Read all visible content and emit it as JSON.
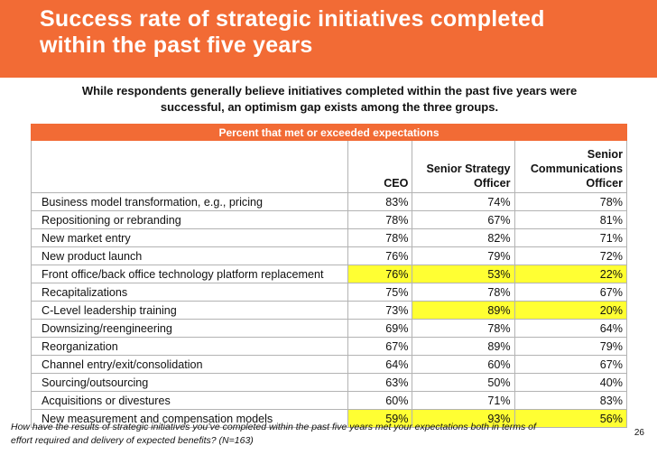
{
  "header": {
    "title_line1": "Success rate of strategic initiatives completed",
    "title_line2": "within the past five years"
  },
  "subtitle": {
    "line1": "While respondents generally believe initiatives completed within the past five years were",
    "line2": "successful, an optimism gap exists among the three groups."
  },
  "table": {
    "band_label": "Percent that met or exceeded expectations",
    "columns": [
      "",
      "CEO",
      "Senior Strategy Officer",
      "Senior Communications Officer"
    ],
    "column_lines": {
      "ceo": [
        "CEO"
      ],
      "sso": [
        "Senior Strategy",
        "Officer"
      ],
      "sco": [
        "Senior",
        "Communications",
        "Officer"
      ]
    },
    "highlight_color": "#ffff33",
    "rows": [
      {
        "label": "Business model transformation, e.g., pricing",
        "ceo": "83%",
        "sso": "74%",
        "sco": "78%",
        "highlight": []
      },
      {
        "label": "Repositioning or rebranding",
        "ceo": "78%",
        "sso": "67%",
        "sco": "81%",
        "highlight": []
      },
      {
        "label": "New market entry",
        "ceo": "78%",
        "sso": "82%",
        "sco": "71%",
        "highlight": []
      },
      {
        "label": "New product launch",
        "ceo": "76%",
        "sso": "79%",
        "sco": "72%",
        "highlight": []
      },
      {
        "label": "Front office/back office technology platform replacement",
        "ceo": "76%",
        "sso": "53%",
        "sco": "22%",
        "highlight": [
          "ceo",
          "sso",
          "sco"
        ]
      },
      {
        "label": "Recapitalizations",
        "ceo": "75%",
        "sso": "78%",
        "sco": "67%",
        "highlight": []
      },
      {
        "label": "C-Level leadership training",
        "ceo": "73%",
        "sso": "89%",
        "sco": "20%",
        "highlight": [
          "sso",
          "sco"
        ]
      },
      {
        "label": "Downsizing/reengineering",
        "ceo": "69%",
        "sso": "78%",
        "sco": "64%",
        "highlight": []
      },
      {
        "label": "Reorganization",
        "ceo": "67%",
        "sso": "89%",
        "sco": "79%",
        "highlight": []
      },
      {
        "label": "Channel entry/exit/consolidation",
        "ceo": "64%",
        "sso": "60%",
        "sco": "67%",
        "highlight": []
      },
      {
        "label": "Sourcing/outsourcing",
        "ceo": "63%",
        "sso": "50%",
        "sco": "40%",
        "highlight": []
      },
      {
        "label": "Acquisitions or divestures",
        "ceo": "60%",
        "sso": "71%",
        "sco": "83%",
        "highlight": []
      },
      {
        "label": "New measurement and compensation models",
        "ceo": "59%",
        "sso": "93%",
        "sco": "56%",
        "highlight": [
          "ceo",
          "sso",
          "sco"
        ]
      }
    ]
  },
  "footnote": {
    "line1": "How have the results of strategic initiatives you’ve completed within the past five years met your expectations both in terms of",
    "line2": "effort required and delivery of expected benefits? (N=163)"
  },
  "page_number": "26"
}
